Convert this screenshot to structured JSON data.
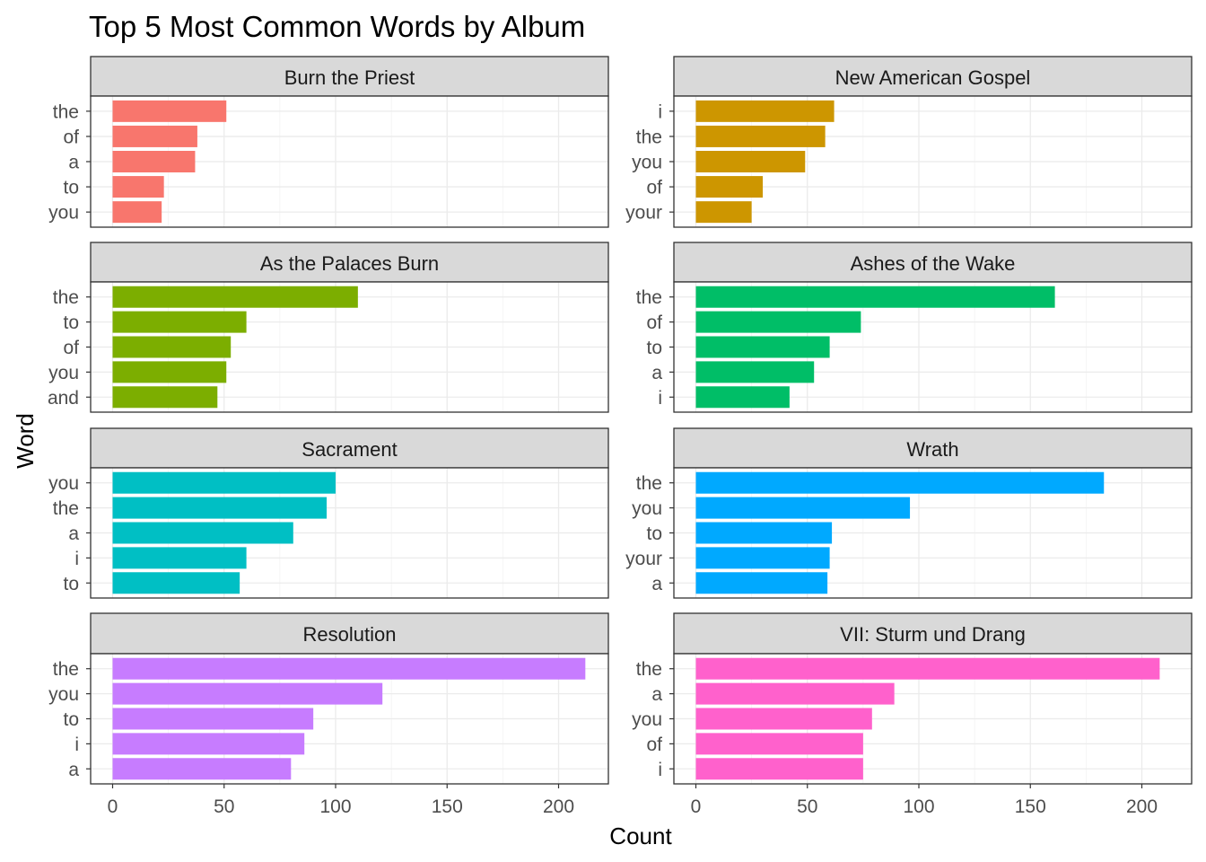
{
  "chart_data": {
    "type": "bar",
    "orientation": "horizontal",
    "title": "Top 5 Most Common Words by Album",
    "xlabel": "Count",
    "ylabel": "Word",
    "xlim": [
      0,
      220
    ],
    "x_ticks": [
      0,
      50,
      100,
      150,
      200
    ],
    "grid": true,
    "legend": "none",
    "panels": [
      {
        "name": "Burn the Priest",
        "color": "#F8766D",
        "categories": [
          "the",
          "of",
          "a",
          "to",
          "you"
        ],
        "values": [
          51,
          38,
          37,
          23,
          22
        ]
      },
      {
        "name": "New American Gospel",
        "color": "#CD9600",
        "categories": [
          "i",
          "the",
          "you",
          "of",
          "your"
        ],
        "values": [
          62,
          58,
          49,
          30,
          25
        ]
      },
      {
        "name": "As the Palaces Burn",
        "color": "#7CAE00",
        "categories": [
          "the",
          "to",
          "of",
          "you",
          "and"
        ],
        "values": [
          110,
          60,
          53,
          51,
          47
        ]
      },
      {
        "name": "Ashes of the Wake",
        "color": "#00BE67",
        "categories": [
          "the",
          "of",
          "to",
          "a",
          "i"
        ],
        "values": [
          161,
          74,
          60,
          53,
          42
        ]
      },
      {
        "name": "Sacrament",
        "color": "#00BFC4",
        "categories": [
          "you",
          "the",
          "a",
          "i",
          "to"
        ],
        "values": [
          100,
          96,
          81,
          60,
          57
        ]
      },
      {
        "name": "Wrath",
        "color": "#00A9FF",
        "categories": [
          "the",
          "you",
          "to",
          "your",
          "a"
        ],
        "values": [
          183,
          96,
          61,
          60,
          59
        ]
      },
      {
        "name": "Resolution",
        "color": "#C77CFF",
        "categories": [
          "the",
          "you",
          "to",
          "i",
          "a"
        ],
        "values": [
          212,
          121,
          90,
          86,
          80
        ]
      },
      {
        "name": "VII: Sturm und Drang",
        "color": "#FF61CC",
        "categories": [
          "the",
          "a",
          "you",
          "of",
          "i"
        ],
        "values": [
          208,
          89,
          79,
          75,
          75
        ]
      }
    ]
  }
}
